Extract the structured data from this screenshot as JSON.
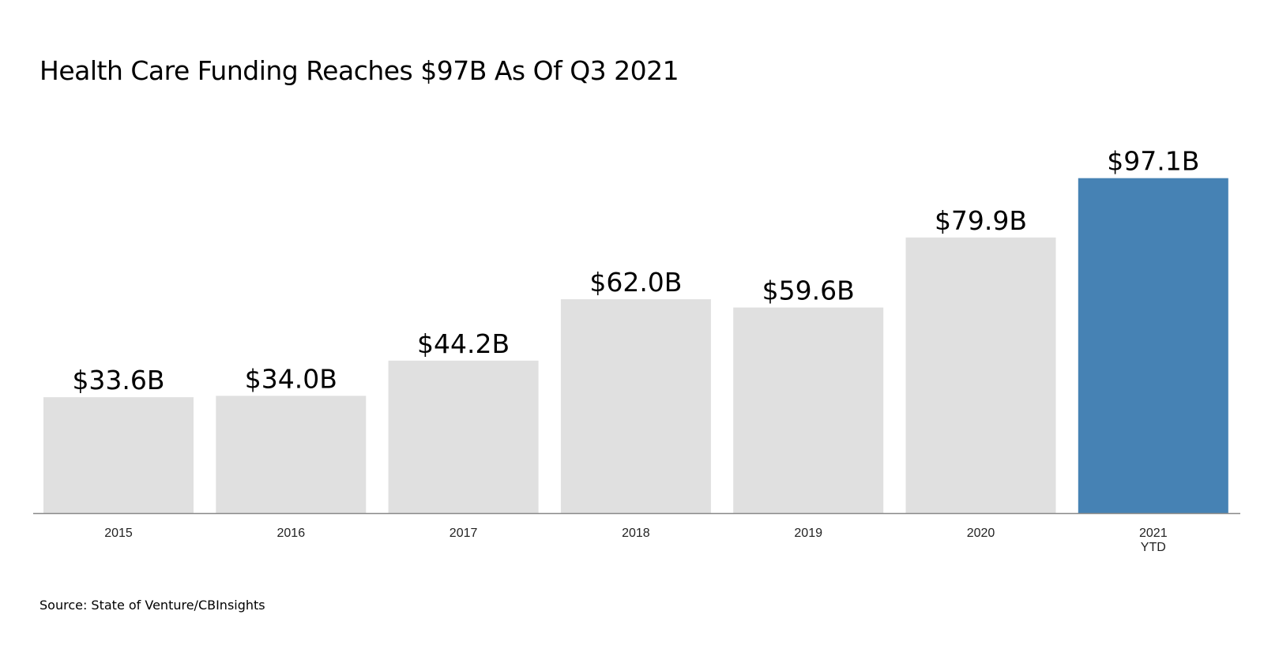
{
  "title": "Health Care Funding Reaches $97B As Of Q3 2021",
  "source": "Source: State of Venture/CBInsights",
  "colors": {
    "bar_default": "#e0e0e0",
    "bar_highlight": "#4682b4",
    "axis": "#888888"
  },
  "chart_data": {
    "type": "bar",
    "title": "Health Care Funding Reaches $97B As Of Q3 2021",
    "xlabel": "",
    "ylabel": "",
    "categories": [
      [
        "2015"
      ],
      [
        "2016"
      ],
      [
        "2017"
      ],
      [
        "2018"
      ],
      [
        "2019"
      ],
      [
        "2020"
      ],
      [
        "2021",
        "YTD"
      ]
    ],
    "values": [
      33.6,
      34.0,
      44.2,
      62.0,
      59.6,
      79.9,
      97.1
    ],
    "value_labels": [
      "$33.6B",
      "$34.0B",
      "$44.2B",
      "$62.0B",
      "$59.6B",
      "$79.9B",
      "$97.1B"
    ],
    "highlight_index": 6,
    "ylim": [
      0,
      100
    ],
    "grid": false,
    "legend": "none"
  }
}
